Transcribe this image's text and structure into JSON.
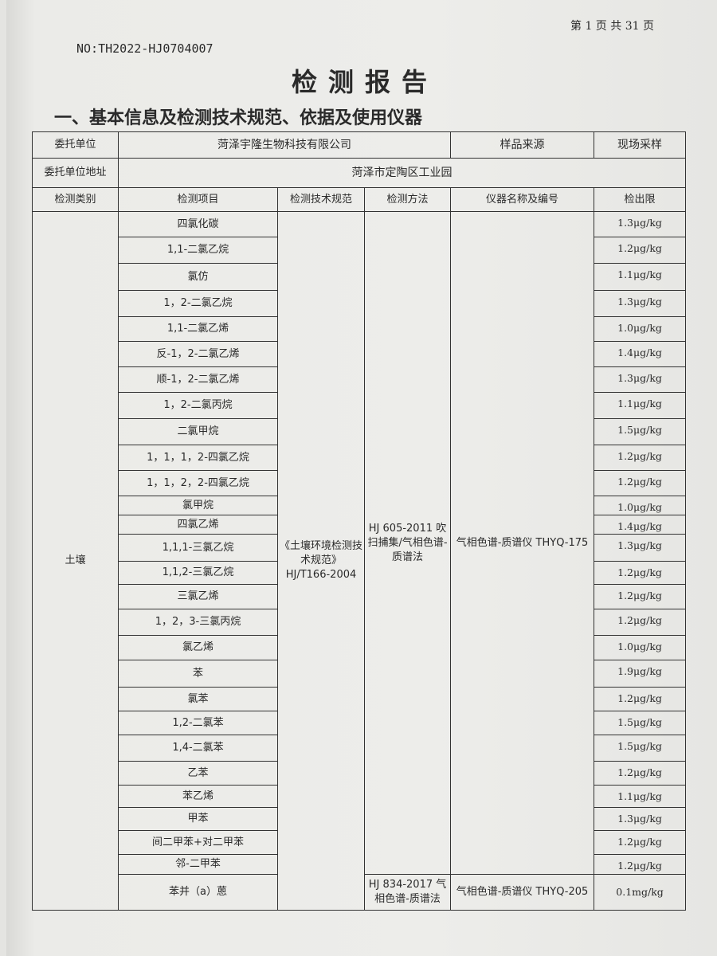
{
  "page_number": "第 1 页 共 31 页",
  "report_no": "NO:TH2022-HJ0704007",
  "title": "检测报告",
  "section_title": "一、基本信息及检测技术规范、依据及使用仪器",
  "info": {
    "client_label": "委托单位",
    "client_value": "菏泽宇隆生物科技有限公司",
    "source_label": "样品来源",
    "source_value": "现场采样",
    "address_label": "委托单位地址",
    "address_value": "菏泽市定陶区工业园"
  },
  "headers": [
    "检测类别",
    "检测项目",
    "检测技术规范",
    "检测方法",
    "仪器名称及编号",
    "检出限"
  ],
  "category": "土壤",
  "spec": "《土壤环境检测技术规范》HJ/T166-2004",
  "method_1": "HJ 605-2011 吹扫捕集/气相色谱-质谱法",
  "instrument_1": "气相色谱-质谱仪 THYQ-175",
  "method_2": "HJ 834-2017 气相色谱-质谱法",
  "instrument_2": "气相色谱-质谱仪 THYQ-205",
  "rows": [
    {
      "item": "四氯化碳",
      "limit": "1.3μg/kg"
    },
    {
      "item": "1,1-二氯乙烷",
      "limit": "1.2μg/kg"
    },
    {
      "item": "氯仿",
      "limit": "1.1μg/kg"
    },
    {
      "item": "1，2-二氯乙烷",
      "limit": "1.3μg/kg"
    },
    {
      "item": "1,1-二氯乙烯",
      "limit": "1.0μg/kg"
    },
    {
      "item": "反-1，2-二氯乙烯",
      "limit": "1.4μg/kg"
    },
    {
      "item": "顺-1，2-二氯乙烯",
      "limit": "1.3μg/kg"
    },
    {
      "item": "1，2-二氯丙烷",
      "limit": "1.1μg/kg"
    },
    {
      "item": "二氯甲烷",
      "limit": "1.5μg/kg"
    },
    {
      "item": "1，1，1，2-四氯乙烷",
      "limit": "1.2μg/kg"
    },
    {
      "item": "1，1，2，2-四氯乙烷",
      "limit": "1.2μg/kg"
    },
    {
      "item": "氯甲烷",
      "limit": "1.0μg/kg"
    },
    {
      "item": "四氯乙烯",
      "limit": "1.4μg/kg"
    },
    {
      "item": "1,1,1-三氯乙烷",
      "limit": "1.3μg/kg"
    },
    {
      "item": "1,1,2-三氯乙烷",
      "limit": "1.2μg/kg"
    },
    {
      "item": "三氯乙烯",
      "limit": "1.2μg/kg"
    },
    {
      "item": "1，2，3-三氯丙烷",
      "limit": "1.2μg/kg"
    },
    {
      "item": "氯乙烯",
      "limit": "1.0μg/kg"
    },
    {
      "item": "苯",
      "limit": "1.9μg/kg"
    },
    {
      "item": "氯苯",
      "limit": "1.2μg/kg"
    },
    {
      "item": "1,2-二氯苯",
      "limit": "1.5μg/kg"
    },
    {
      "item": "1,4-二氯苯",
      "limit": "1.5μg/kg"
    },
    {
      "item": "乙苯",
      "limit": "1.2μg/kg"
    },
    {
      "item": "苯乙烯",
      "limit": "1.1μg/kg"
    },
    {
      "item": "甲苯",
      "limit": "1.3μg/kg"
    },
    {
      "item": "间二甲苯+对二甲苯",
      "limit": "1.2μg/kg"
    },
    {
      "item": "邻-二甲苯",
      "limit": "1.2μg/kg"
    },
    {
      "item": "苯并（a）蒽",
      "limit": "0.1mg/kg"
    }
  ]
}
